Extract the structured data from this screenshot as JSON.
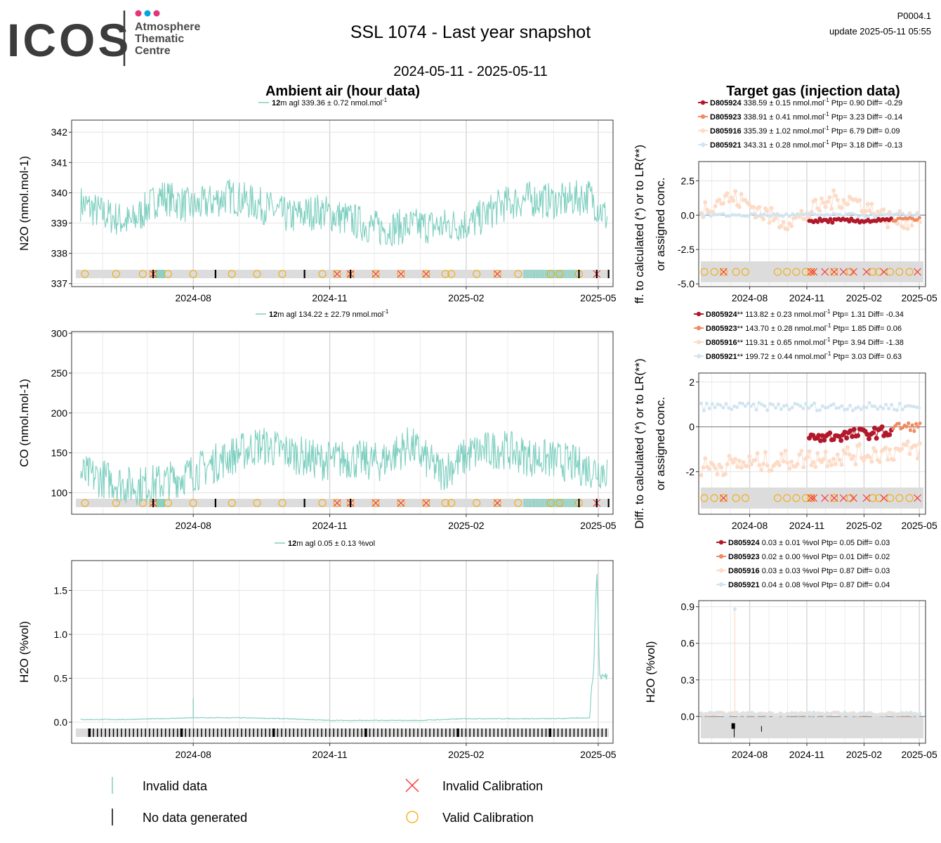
{
  "header": {
    "logo_text": "ICOS",
    "logo_sub": [
      "Atmosphere",
      "Thematic",
      "Centre"
    ],
    "title": "SSL 1074 - Last year snapshot",
    "date_range": "2024-05-11 - 2025-05-11",
    "code": "P0004.1",
    "update": "update  2025-05-11 05:55"
  },
  "sections": {
    "ambient": "Ambient air (hour data)",
    "target": "Target gas (injection data)"
  },
  "colors": {
    "series": "#7ecfc0",
    "invalid_cal": "#ff2a2a",
    "valid_cal": "#f5a800",
    "no_data": "#000000",
    "t1": "#b2182b",
    "t2": "#ef8a62",
    "t3": "#fddbc7",
    "t4": "#d1e5f0",
    "strip": "#dcdcdc"
  },
  "x_ticks": [
    "2024-08",
    "2024-11",
    "2025-02",
    "2025-05"
  ],
  "chart_data": [
    {
      "id": "n2o",
      "type": "line",
      "ylabel": "N2O (nmol.mol-1)",
      "legend": {
        "height": "12",
        "text": "m agl 339.36 ± 0.72 nmol.mol"
      },
      "ylim": [
        336.9,
        342.4
      ],
      "yticks": [
        337,
        338,
        339,
        340,
        341,
        342
      ],
      "x": [
        "2024-05-11",
        "2024-06-01",
        "2024-06-20",
        "2024-07-10",
        "2024-08-01",
        "2024-08-25",
        "2024-09-15",
        "2024-10-05",
        "2024-10-25",
        "2024-11-15",
        "2024-12-05",
        "2024-12-25",
        "2025-01-15",
        "2025-02-05",
        "2025-02-25",
        "2025-03-15",
        "2025-04-05",
        "2025-04-25",
        "2025-05-08"
      ],
      "y": [
        339.8,
        339.3,
        339.0,
        339.9,
        339.5,
        339.9,
        339.6,
        339.2,
        339.4,
        339.1,
        338.8,
        338.9,
        338.9,
        339.0,
        339.6,
        339.8,
        339.7,
        339.9,
        339.1
      ]
    },
    {
      "id": "co",
      "type": "line",
      "ylabel": "CO (nmol.mol-1)",
      "legend": {
        "height": "12",
        "text": "m agl 134.22 ± 22.79 nmol.mol"
      },
      "ylim": [
        73,
        302
      ],
      "yticks": [
        100,
        150,
        200,
        250,
        300
      ],
      "x": [
        "2024-05-11",
        "2024-06-01",
        "2024-06-20",
        "2024-07-10",
        "2024-08-01",
        "2024-08-25",
        "2024-09-15",
        "2024-10-05",
        "2024-10-25",
        "2024-11-15",
        "2024-12-05",
        "2024-12-25",
        "2025-01-15",
        "2025-02-05",
        "2025-02-25",
        "2025-03-15",
        "2025-04-05",
        "2025-04-25",
        "2025-05-08"
      ],
      "y": [
        125,
        118,
        108,
        112,
        125,
        145,
        160,
        150,
        140,
        142,
        138,
        160,
        125,
        150,
        155,
        145,
        140,
        130,
        128
      ]
    },
    {
      "id": "h2o",
      "type": "line",
      "ylabel": "H2O (%vol)",
      "legend": {
        "height": "12",
        "text": "m agl 0.05 ± 0.13 %vol"
      },
      "ylim": [
        -0.24,
        1.84
      ],
      "yticks": [
        0.0,
        0.5,
        1.0,
        1.5
      ],
      "x": [
        "2024-05-11",
        "2024-06-15",
        "2024-07-10",
        "2024-08-01",
        "2024-09-01",
        "2024-10-01",
        "2024-11-01",
        "2024-12-01",
        "2025-01-01",
        "2025-02-01",
        "2025-03-01",
        "2025-04-01",
        "2025-04-25",
        "2025-04-28",
        "2025-04-30",
        "2025-05-02",
        "2025-05-08"
      ],
      "y": [
        0.03,
        0.03,
        0.04,
        0.05,
        0.05,
        0.04,
        0.02,
        0.02,
        0.02,
        0.04,
        0.04,
        0.04,
        0.05,
        0.65,
        1.75,
        0.52,
        0.52
      ]
    }
  ],
  "target_charts": [
    {
      "id": "t-n2o",
      "ylabel_lines": [
        "ff. to calculated (*) or to LR(**)",
        "or assigned conc."
      ],
      "ylim": [
        -5.2,
        3.9
      ],
      "yticks": [
        "2.5",
        "0.0",
        "-2.5",
        "-5.0"
      ],
      "legend": [
        {
          "name": "D805924",
          "text": " 338.59 ± 0.15 nmol.mol",
          "stats": " Ptp= 0.90 Diff= -0.29"
        },
        {
          "name": "D805923",
          "text": " 338.91 ± 0.41 nmol.mol",
          "stats": " Ptp= 3.23 Diff= -0.14"
        },
        {
          "name": "D805916",
          "text": " 335.39 ± 1.02 nmol.mol",
          "stats": " Ptp= 6.79 Diff= 0.09"
        },
        {
          "name": "D805921",
          "text": " 343.31 ± 0.28 nmol.mol",
          "stats": " Ptp= 3.18 Diff= -0.13"
        }
      ]
    },
    {
      "id": "t-co",
      "ylabel_lines": [
        "Diff. to calculated (*) or to LR(**)",
        "or assigned conc."
      ],
      "ylim": [
        -3.9,
        2.4
      ],
      "yticks": [
        "2",
        "0",
        "-2"
      ],
      "legend": [
        {
          "name": "D805924",
          "text": "** 113.82 ± 0.23 nmol.mol",
          "stats": " Ptp= 1.31 Diff= -0.34"
        },
        {
          "name": "D805923",
          "text": "** 143.70 ± 0.28 nmol.mol",
          "stats": " Ptp= 1.85 Diff= 0.06"
        },
        {
          "name": "D805916",
          "text": "** 119.31 ± 0.65 nmol.mol",
          "stats": " Ptp= 3.94 Diff= -1.38"
        },
        {
          "name": "D805921",
          "text": "** 199.72 ± 0.44 nmol.mol",
          "stats": " Ptp= 3.03 Diff= 0.63"
        }
      ]
    },
    {
      "id": "t-h2o",
      "ylabel_lines": [
        "H2O (%vol)"
      ],
      "ylim": [
        -0.22,
        0.95
      ],
      "yticks": [
        "0.9",
        "0.6",
        "0.3",
        "0.0"
      ],
      "legend": [
        {
          "name": "D805924",
          "text": " 0.03 ± 0.01 %vol",
          "stats": " Ptp= 0.05 Diff= 0.03"
        },
        {
          "name": "D805923",
          "text": " 0.02 ± 0.00 %vol",
          "stats": " Ptp= 0.01 Diff= 0.02"
        },
        {
          "name": "D805916",
          "text": " 0.03 ± 0.03 %vol",
          "stats": " Ptp= 0.87 Diff= 0.03"
        },
        {
          "name": "D805921",
          "text": " 0.04 ± 0.08 %vol",
          "stats": " Ptp= 0.87 Diff= 0.04"
        }
      ]
    }
  ],
  "footer_legend": [
    {
      "name": "invalid-data",
      "label": "Invalid data"
    },
    {
      "name": "invalid-calibration",
      "label": "Invalid Calibration"
    },
    {
      "name": "no-data-generated",
      "label": "No data generated"
    },
    {
      "name": "valid-calibration",
      "label": "Valid Calibration"
    }
  ]
}
